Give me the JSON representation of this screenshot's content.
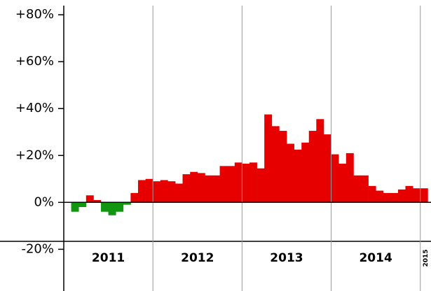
{
  "chart_data": {
    "type": "bar",
    "x": [
      2011.083,
      2011.167,
      2011.25,
      2011.333,
      2011.417,
      2011.5,
      2011.583,
      2011.667,
      2011.75,
      2011.833,
      2011.917,
      2012.0,
      2012.083,
      2012.167,
      2012.25,
      2012.333,
      2012.417,
      2012.5,
      2012.583,
      2012.667,
      2012.75,
      2012.833,
      2012.917,
      2013.0,
      2013.083,
      2013.167,
      2013.25,
      2013.333,
      2013.417,
      2013.5,
      2013.583,
      2013.667,
      2013.75,
      2013.833,
      2013.917,
      2014.0,
      2014.083,
      2014.167,
      2014.25,
      2014.333,
      2014.417,
      2014.5,
      2014.583,
      2014.667,
      2014.75,
      2014.833,
      2014.917,
      2015.0
    ],
    "values": [
      -4,
      -2,
      3,
      1,
      -4,
      -5.5,
      -4,
      -1,
      4,
      9.5,
      10,
      9,
      9.5,
      9,
      8,
      12,
      13,
      12.5,
      11.5,
      11.5,
      15.5,
      15.5,
      17,
      16.5,
      17,
      14.5,
      37.5,
      32.5,
      30.5,
      25,
      22.5,
      25.5,
      30.5,
      35.5,
      29,
      20.5,
      16.5,
      21,
      11.5,
      11.5,
      7,
      5,
      4,
      4,
      5.5,
      7,
      6,
      6
    ],
    "positive_color": "#e60000",
    "negative_color": "#129612",
    "xlim": [
      2011,
      2015.12
    ],
    "xticks": [
      {
        "value": 2011,
        "label": "2011"
      },
      {
        "value": 2012,
        "label": "2012"
      },
      {
        "value": 2013,
        "label": "2013"
      },
      {
        "value": 2014,
        "label": "2014"
      },
      {
        "value": 2015,
        "label": "2015"
      }
    ],
    "ylim": [
      -36,
      86
    ],
    "yticks": [
      {
        "value": -20,
        "label": "-20%"
      },
      {
        "value": 0,
        "label": "0%"
      },
      {
        "value": 20,
        "label": "+20%"
      },
      {
        "value": 40,
        "label": "+40%"
      },
      {
        "value": 60,
        "label": "+60%"
      },
      {
        "value": 80,
        "label": "+80%"
      }
    ],
    "grid": true
  }
}
